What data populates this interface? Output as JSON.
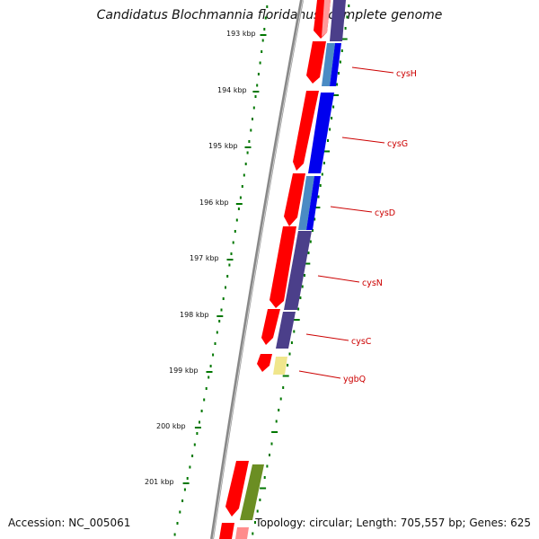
{
  "title": "Candidatus Blochmannia floridanus, complete genome",
  "footer": {
    "accession": "Accession: NC_005061",
    "summary": "Topology: circular; Length: 705,557 bp; Genes: 625"
  },
  "ticks": [
    "193 kbp",
    "194 kbp",
    "195 kbp",
    "196 kbp",
    "197 kbp",
    "198 kbp",
    "199 kbp",
    "200 kbp",
    "201 kbp"
  ],
  "genes": [
    "cysH",
    "cysG",
    "cysD",
    "cysN",
    "cysC",
    "ygbQ"
  ],
  "colors": {
    "cds": "#ff0000",
    "cds_light": "#ff9999",
    "cog_blue": "#0000ee",
    "cog_steel": "#4a8bc4",
    "cog_purple": "#4b3f8a",
    "cog_yellow": "#f0e68c",
    "cog_olive": "#6b8e23",
    "backbone": "#888888",
    "ticks": "#007700",
    "label": "#cc0000"
  }
}
